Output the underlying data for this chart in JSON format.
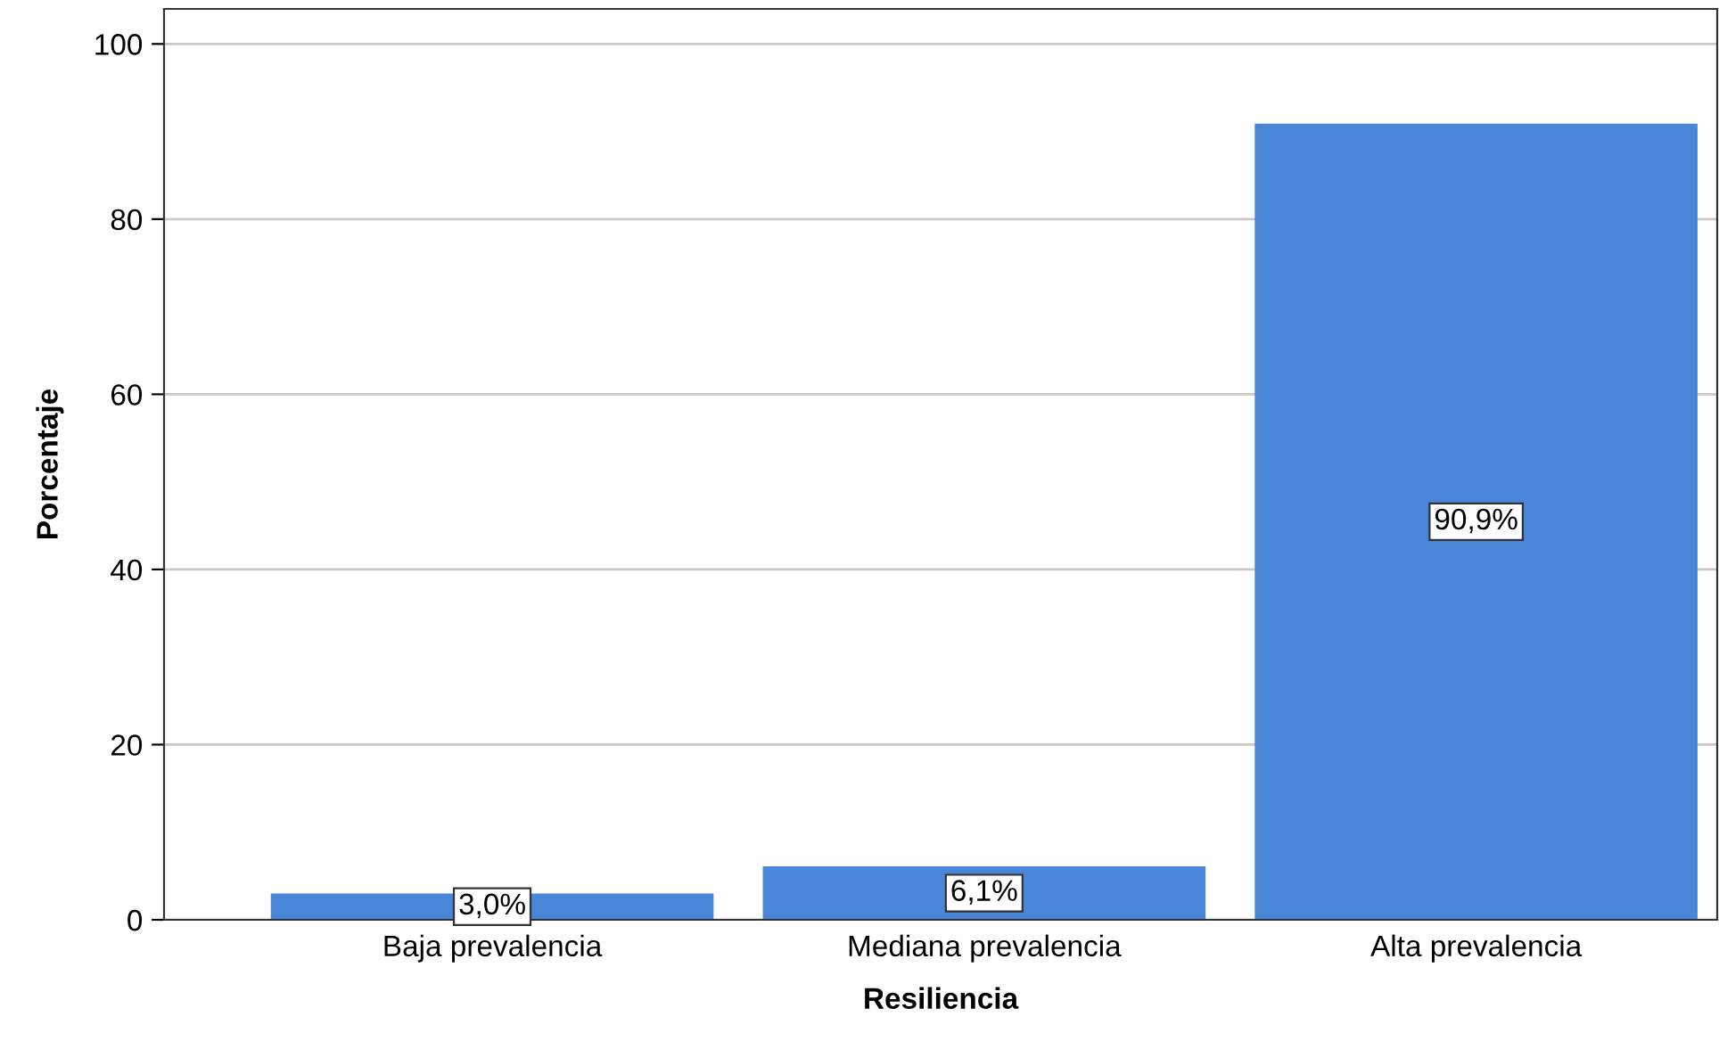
{
  "chart_data": {
    "type": "bar",
    "xlabel": "Resiliencia",
    "ylabel": "Porcentaje",
    "categories": [
      "Baja prevalencia",
      "Mediana prevalencia",
      "Alta prevalencia"
    ],
    "values": [
      3.0,
      6.1,
      90.9
    ],
    "value_labels": [
      "3,0%",
      "6,1%",
      "90,9%"
    ],
    "color": "#4a86d8",
    "ylim": [
      0,
      104
    ],
    "yticks": [
      0,
      20,
      40,
      60,
      80,
      100
    ],
    "grid": "y",
    "legend": false
  }
}
